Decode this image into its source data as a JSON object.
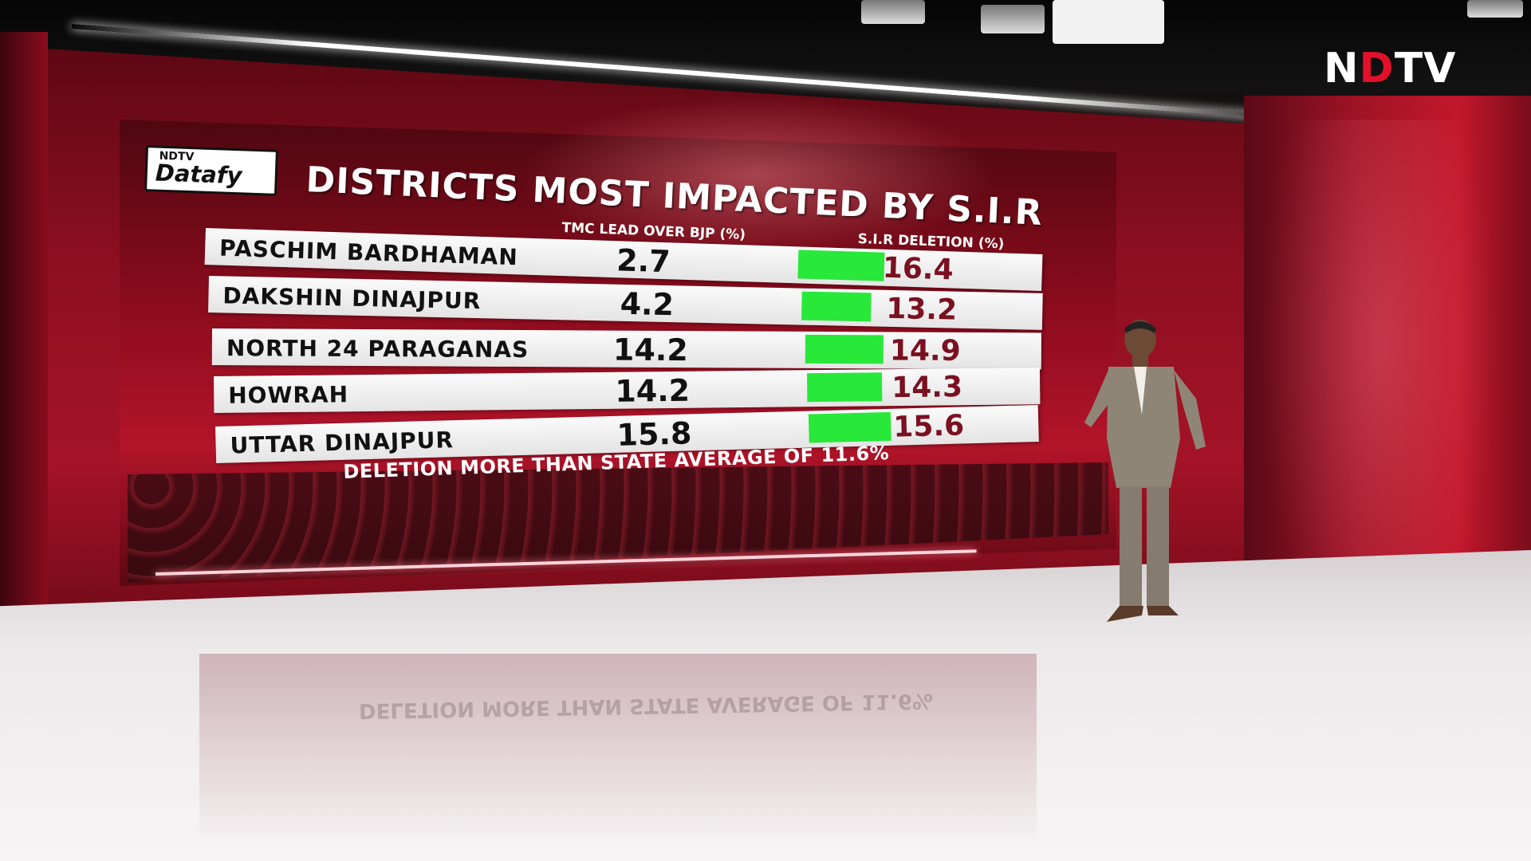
{
  "broadcaster": {
    "logo_text_left": "N",
    "logo_text_dot": "D",
    "logo_text_right": "TV"
  },
  "badge": {
    "top": "NDTV",
    "main": "Datafy"
  },
  "graphic": {
    "title": "DISTRICTS MOST IMPACTED BY S.I.R",
    "column_lead": "TMC LEAD OVER BJP (%)",
    "column_deletion": "S.I.R DELETION (%)",
    "footnote": "DELETION MORE THAN STATE AVERAGE OF 11.6%",
    "bar_color": "#28e83a",
    "rows": [
      {
        "district": "PASCHIM BARDHAMAN",
        "lead": "2.7",
        "deletion": "16.4"
      },
      {
        "district": "DAKSHIN DINAJPUR",
        "lead": "4.2",
        "deletion": "13.2"
      },
      {
        "district": "NORTH 24 PARAGANAS",
        "lead": "14.2",
        "deletion": "14.9"
      },
      {
        "district": "HOWRAH",
        "lead": "14.2",
        "deletion": "14.3"
      },
      {
        "district": "UTTAR DINAJPUR",
        "lead": "15.8",
        "deletion": "15.6"
      }
    ]
  },
  "floor_reflection": {
    "text": "DELETION MORE THAN STATE AVERAGE OF 11.6%"
  },
  "colors": {
    "screen_red": "#a51327",
    "accent_red": "#e3102a"
  }
}
